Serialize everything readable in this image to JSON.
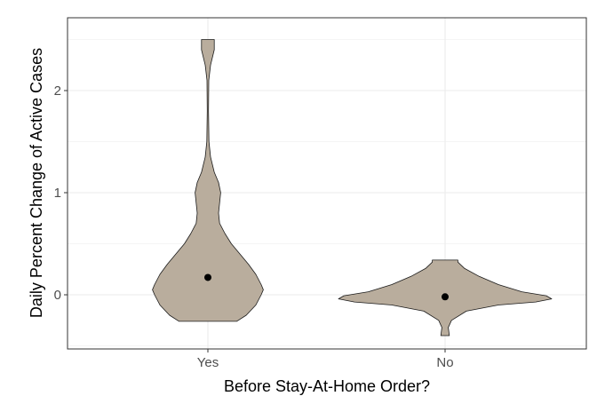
{
  "chart_data": {
    "type": "violin",
    "title": "",
    "xlabel": "Before Stay-At-Home Order?",
    "ylabel": "Daily Percent Change of Active Cases",
    "categories": [
      "Yes",
      "No"
    ],
    "ylim": [
      -0.52,
      2.52
    ],
    "y_ticks": [
      0,
      1,
      2
    ],
    "y_tick_labels": [
      "0",
      "1",
      "2"
    ],
    "grid": true,
    "legend": "none",
    "colors": {
      "fill": "#b9ad9d",
      "outline": "#1a1a1a",
      "grid": "#ebebeb",
      "point": "#000000"
    },
    "violins": [
      {
        "category": "Yes",
        "summary_point": 0.17,
        "y_min": -0.26,
        "y_max": 2.5,
        "profile": [
          {
            "y": -0.26,
            "w": 0.27
          },
          {
            "y": -0.2,
            "w": 0.36
          },
          {
            "y": -0.1,
            "w": 0.45
          },
          {
            "y": 0.0,
            "w": 0.5
          },
          {
            "y": 0.05,
            "w": 0.52
          },
          {
            "y": 0.1,
            "w": 0.5
          },
          {
            "y": 0.2,
            "w": 0.45
          },
          {
            "y": 0.3,
            "w": 0.38
          },
          {
            "y": 0.4,
            "w": 0.3
          },
          {
            "y": 0.5,
            "w": 0.22
          },
          {
            "y": 0.6,
            "w": 0.16
          },
          {
            "y": 0.7,
            "w": 0.11
          },
          {
            "y": 0.8,
            "w": 0.1
          },
          {
            "y": 0.9,
            "w": 0.11
          },
          {
            "y": 1.0,
            "w": 0.12
          },
          {
            "y": 1.1,
            "w": 0.1
          },
          {
            "y": 1.2,
            "w": 0.06
          },
          {
            "y": 1.35,
            "w": 0.025
          },
          {
            "y": 1.5,
            "w": 0.01
          },
          {
            "y": 1.8,
            "w": 0.006
          },
          {
            "y": 2.1,
            "w": 0.008
          },
          {
            "y": 2.25,
            "w": 0.025
          },
          {
            "y": 2.4,
            "w": 0.06
          },
          {
            "y": 2.5,
            "w": 0.06
          }
        ]
      },
      {
        "category": "No",
        "summary_point": -0.02,
        "y_min": -0.4,
        "y_max": 0.34,
        "profile": [
          {
            "y": -0.4,
            "w": 0.04
          },
          {
            "y": -0.32,
            "w": 0.03
          },
          {
            "y": -0.25,
            "w": 0.06
          },
          {
            "y": -0.16,
            "w": 0.2
          },
          {
            "y": -0.1,
            "w": 0.5
          },
          {
            "y": -0.07,
            "w": 0.85
          },
          {
            "y": -0.04,
            "w": 1.0
          },
          {
            "y": -0.01,
            "w": 0.95
          },
          {
            "y": 0.03,
            "w": 0.72
          },
          {
            "y": 0.1,
            "w": 0.5
          },
          {
            "y": 0.18,
            "w": 0.32
          },
          {
            "y": 0.26,
            "w": 0.18
          },
          {
            "y": 0.32,
            "w": 0.12
          },
          {
            "y": 0.34,
            "w": 0.12
          }
        ]
      }
    ]
  }
}
